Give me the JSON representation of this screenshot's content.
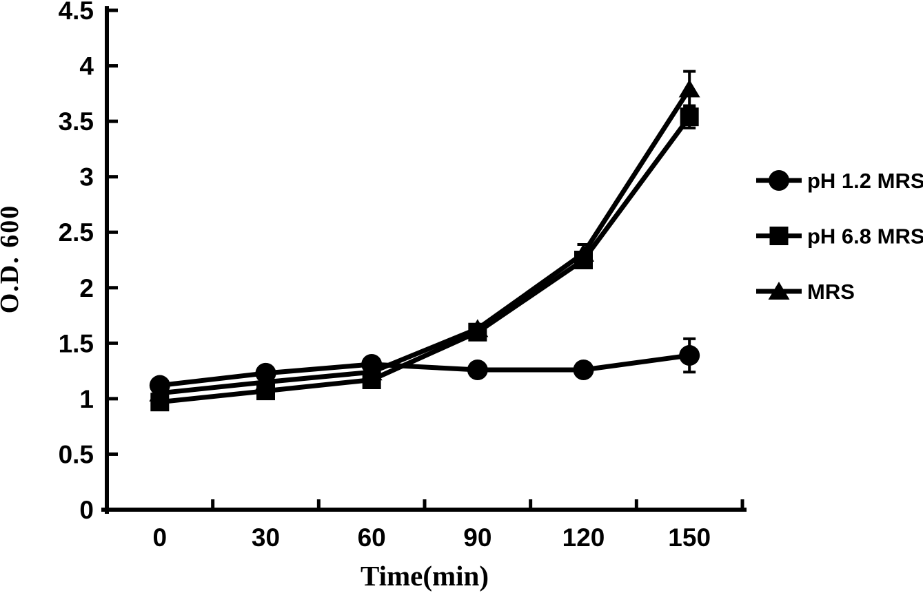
{
  "figure": {
    "background": "#ffffff",
    "ink_color": "#000000"
  },
  "chart_data": {
    "type": "line",
    "title": "",
    "xlabel": "Time(min)",
    "ylabel": "O.D. 600",
    "x": [
      0,
      30,
      60,
      90,
      120,
      150
    ],
    "x_tick_labels": [
      "0",
      "30",
      "60",
      "90",
      "120",
      "150"
    ],
    "y_ticks": [
      0,
      0.5,
      1,
      1.5,
      2,
      2.5,
      3,
      3.5,
      4,
      4.5
    ],
    "y_tick_labels": [
      "0",
      "0.5",
      "1",
      "1.5",
      "2",
      "2.5",
      "3",
      "3.5",
      "4",
      "4.5"
    ],
    "ylim": [
      0,
      4.5
    ],
    "grid": false,
    "legend_position": "right",
    "series": [
      {
        "name": "pH 1.2 MRS",
        "marker": "circle",
        "values": [
          1.12,
          1.23,
          1.31,
          1.26,
          1.26,
          1.39
        ],
        "errors": [
          0,
          0,
          0,
          0,
          0,
          0.15
        ]
      },
      {
        "name": "pH 6.8 MRS",
        "marker": "square",
        "values": [
          0.97,
          1.07,
          1.17,
          1.6,
          2.25,
          3.54
        ],
        "errors": [
          0,
          0,
          0,
          0,
          0,
          0.1
        ]
      },
      {
        "name": "MRS",
        "marker": "triangle",
        "values": [
          1.05,
          1.15,
          1.24,
          1.63,
          2.31,
          3.79
        ],
        "errors": [
          0,
          0,
          0,
          0,
          0.08,
          0.16
        ]
      }
    ]
  }
}
